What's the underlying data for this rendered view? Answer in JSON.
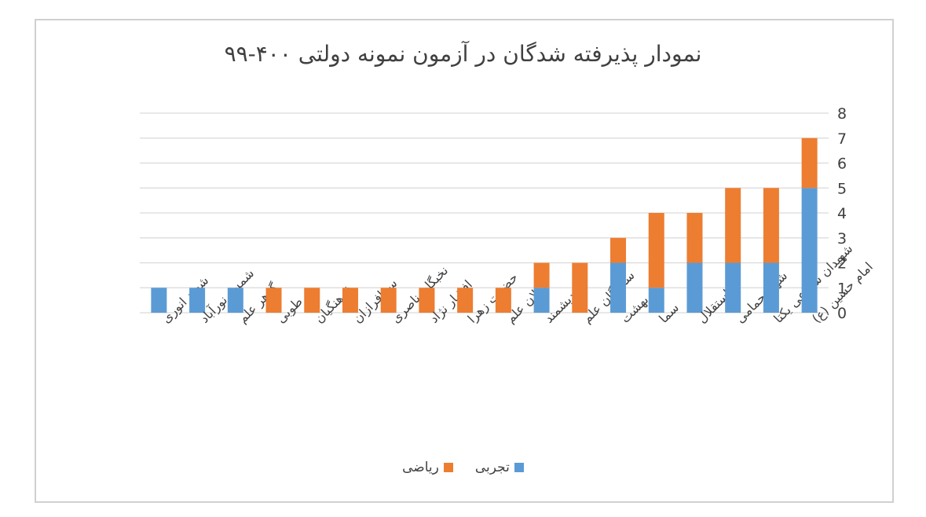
{
  "chart_data": {
    "type": "bar",
    "stacked": true,
    "title": "نمودار پذیرفته شدگان در آزمون نمونه دولتی ۴۰۰-۹۹",
    "categories": [
      "شهید انوری",
      "شمس نورآباد",
      "گوهر علم",
      "طوبی",
      "فرهنگیان",
      "سرافرازان",
      "نخبگان ناصری",
      "افشار نژاد",
      "حضرت زهرا",
      "سبلان علم",
      "اندیشمند",
      "ستارگان علم",
      "بهشت",
      "سما",
      "استقلال",
      "شهید حمامی",
      "شهیدان سماعی یکتا",
      "امام حسین (ع)"
    ],
    "series": [
      {
        "name": "تجربی",
        "color": "#5b9bd5",
        "values": [
          1,
          1,
          1,
          0,
          0,
          0,
          0,
          0,
          0,
          0,
          1,
          0,
          2,
          1,
          2,
          2,
          2,
          5
        ]
      },
      {
        "name": "ریاضی",
        "color": "#ed7d31",
        "values": [
          0,
          0,
          0,
          1,
          1,
          1,
          1,
          1,
          1,
          1,
          1,
          2,
          1,
          3,
          2,
          3,
          3,
          2
        ]
      }
    ],
    "y_axis_position": "right",
    "ylim": [
      0,
      8
    ],
    "yticks": [
      "0",
      "1",
      "2",
      "3",
      "4",
      "5",
      "6",
      "7",
      "8"
    ],
    "grid": true,
    "legend_position": "bottom"
  }
}
